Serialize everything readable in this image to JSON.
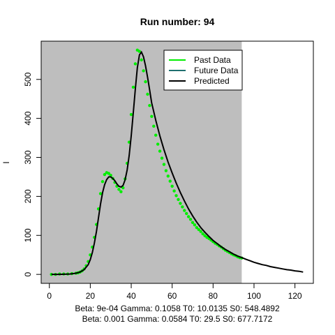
{
  "chart_data": {
    "type": "line",
    "title": "Run number:  94",
    "xlabel": "",
    "ylabel": "I",
    "xlim": [
      -4,
      129
    ],
    "ylim": [
      -23,
      598
    ],
    "x_ticks": [
      0,
      20,
      40,
      60,
      80,
      100,
      120
    ],
    "y_ticks": [
      0,
      100,
      200,
      300,
      400,
      500
    ],
    "shaded_region": {
      "x_from": -4,
      "x_to": 94,
      "color": "#bebebe"
    },
    "grid": false,
    "legend_position": "top-right",
    "footer_lines": [
      "Beta:  9e-04 Gamma:  0.1058 T0:  10.0135 S0:  548.4892",
      "Beta:  0.001 Gamma:  0.0584 T0:  29.5 S0:  677.7172"
    ],
    "series": [
      {
        "name": "Past Data",
        "kind": "points",
        "color": "#00ee00",
        "x": [
          1,
          3,
          5,
          7,
          9,
          11,
          13,
          14,
          15,
          16,
          17,
          18,
          19,
          20,
          21,
          22,
          23,
          24,
          25,
          26,
          27,
          28,
          29,
          30,
          31,
          32,
          33,
          34,
          35,
          36,
          37,
          38,
          39,
          40,
          41,
          42,
          43,
          44,
          45,
          46,
          47,
          48,
          49,
          50,
          51,
          52,
          53,
          54,
          55,
          56,
          57,
          58,
          59,
          60,
          61,
          62,
          63,
          64,
          65,
          66,
          67,
          68,
          69,
          70,
          71,
          72,
          73,
          74,
          75,
          76,
          77,
          78,
          79,
          80,
          81,
          82,
          83,
          84,
          85,
          86,
          87,
          88,
          89,
          90,
          91,
          92,
          93,
          94
        ],
        "y": [
          0,
          0,
          1,
          1,
          1,
          2,
          3,
          4,
          6,
          9,
          14,
          22,
          33,
          50,
          70,
          95,
          128,
          168,
          207,
          238,
          256,
          261,
          259,
          254,
          246,
          236,
          226,
          218,
          212,
          222,
          245,
          285,
          339,
          410,
          480,
          540,
          575,
          572,
          550,
          522,
          494,
          462,
          433,
          405,
          380,
          357,
          334,
          316,
          298,
          282,
          266,
          252,
          239,
          226,
          214,
          202,
          192,
          182,
          173,
          164,
          156,
          148,
          141,
          133,
          127,
          120,
          115,
          110,
          104,
          99,
          95,
          92,
          88,
          84,
          80,
          77,
          73,
          70,
          66,
          62,
          59,
          56,
          53,
          50,
          48,
          45,
          43,
          42
        ]
      },
      {
        "name": "Future Data",
        "kind": "line",
        "color": "#1f6f6f",
        "x": [],
        "y": []
      },
      {
        "name": "Predicted",
        "kind": "line",
        "color": "#000000",
        "x": [
          1,
          5,
          10,
          13,
          15,
          17,
          19,
          20,
          21,
          22,
          23,
          24,
          25,
          26,
          27,
          28,
          29,
          30,
          31,
          32,
          33,
          34,
          35,
          36,
          37,
          38,
          39,
          40,
          41,
          42,
          43,
          44,
          45,
          46,
          47,
          48,
          49,
          50,
          52,
          54,
          56,
          58,
          60,
          62,
          64,
          66,
          68,
          70,
          72,
          74,
          76,
          78,
          80,
          82,
          84,
          86,
          88,
          90,
          92,
          94,
          96,
          98,
          100,
          102,
          104,
          106,
          108,
          110,
          112,
          114,
          116,
          118,
          120,
          122,
          124
        ],
        "y": [
          0,
          0,
          1,
          3,
          6,
          12,
          25,
          38,
          56,
          80,
          110,
          145,
          180,
          210,
          230,
          243,
          250,
          250,
          246,
          240,
          232,
          226,
          224,
          228,
          242,
          268,
          305,
          355,
          415,
          475,
          530,
          563,
          570,
          558,
          535,
          505,
          473,
          440,
          395,
          355,
          320,
          288,
          260,
          234,
          210,
          188,
          168,
          150,
          134,
          120,
          108,
          97,
          87,
          79,
          71,
          64,
          58,
          52,
          47,
          43,
          39,
          35,
          31,
          28,
          25,
          23,
          20,
          18,
          16,
          14,
          12,
          11,
          9,
          8,
          6
        ]
      }
    ]
  }
}
